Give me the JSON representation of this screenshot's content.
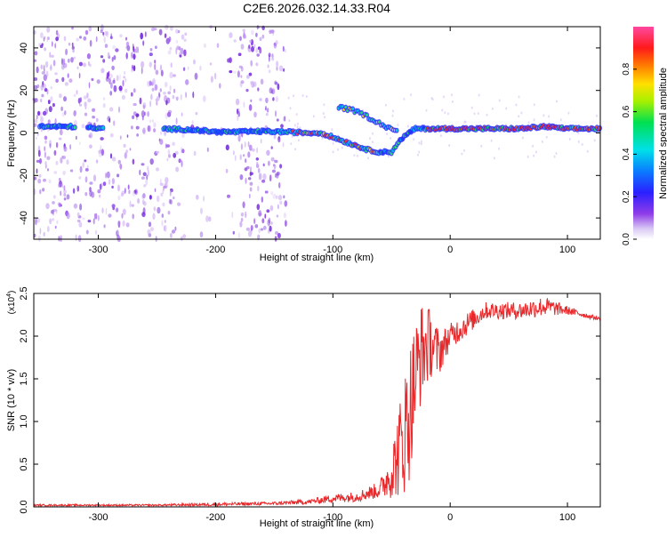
{
  "chart_data": [
    {
      "type": "heatmap",
      "title": "C2E6.2026.032.14.33.R04",
      "xlabel": "Height of straight line (km)",
      "ylabel": "Frequency (Hz)",
      "xlim": [
        -355,
        128
      ],
      "ylim": [
        -50,
        50
      ],
      "xticks": [
        -300,
        -200,
        -100,
        0,
        100
      ],
      "xtick_labels": [
        "-300",
        "-200",
        "-100",
        "0",
        "100"
      ],
      "yticks": [
        -40,
        -20,
        0,
        20,
        40
      ],
      "ytick_labels": [
        "-40",
        "-20",
        "0",
        "20",
        "40"
      ],
      "colorbar": {
        "label": "Normalized spectral amplitude",
        "range": [
          0,
          1
        ],
        "ticks": [
          0,
          0.2,
          0.4,
          0.6,
          0.8
        ],
        "tick_labels": [
          "0.0",
          "0.2",
          "0.4",
          "0.6",
          "0.8"
        ]
      },
      "ridge": {
        "x": [
          -350,
          -320,
          -300,
          -260,
          -245,
          -220,
          -200,
          -180,
          -160,
          -140,
          -120,
          -110,
          -100,
          -90,
          -80,
          -70,
          -60,
          -50,
          -45,
          -40,
          -30,
          -20,
          -10,
          0,
          20,
          40,
          60,
          80,
          100,
          128
        ],
        "freq": [
          3,
          3,
          2,
          2,
          2,
          1.5,
          0.5,
          0.5,
          0.8,
          0.5,
          0,
          0,
          -2,
          -4,
          -6,
          -8,
          -9,
          -9,
          -5,
          -2,
          2,
          2,
          2,
          2,
          2,
          2,
          2,
          3,
          2,
          2
        ]
      },
      "side_branch": {
        "x": [
          -95,
          -85,
          -75,
          -65,
          -55,
          -45
        ],
        "freq": [
          12,
          11,
          9,
          6,
          3,
          1
        ]
      },
      "noise_region_x": [
        -355,
        -140
      ]
    },
    {
      "type": "line",
      "title": "",
      "xlabel": "Height of straight line (km)",
      "ylabel": "SNR (10 * v/v)",
      "multiplier_label": "(x10",
      "multiplier_exponent": "4",
      "multiplier_close": ")",
      "xlim": [
        -355,
        128
      ],
      "ylim": [
        0,
        2.5
      ],
      "xticks": [
        -300,
        -200,
        -100,
        0,
        100
      ],
      "xtick_labels": [
        "-300",
        "-200",
        "-100",
        "0",
        "100"
      ],
      "yticks": [
        0,
        0.5,
        1,
        1.5,
        2,
        2.5
      ],
      "ytick_labels": [
        "0.0",
        "0.5",
        "1.0",
        "1.5",
        "2.0",
        "2.5"
      ],
      "series": [
        {
          "name": "SNR",
          "color": "#e8282a",
          "envelope_x": [
            -355,
            -250,
            -200,
            -150,
            -120,
            -100,
            -80,
            -60,
            -50,
            -45,
            -40,
            -35,
            -30,
            -25,
            -20,
            -15,
            -10,
            -5,
            0,
            10,
            20,
            30,
            40,
            60,
            80,
            100,
            128
          ],
          "envelope_y": [
            0.02,
            0.02,
            0.03,
            0.04,
            0.06,
            0.1,
            0.12,
            0.2,
            0.4,
            0.6,
            0.8,
            1.1,
            1.5,
            1.8,
            1.9,
            1.9,
            1.8,
            1.9,
            2.0,
            2.1,
            2.2,
            2.3,
            2.3,
            2.3,
            2.35,
            2.3,
            2.2
          ],
          "jitter": [
            0.01,
            0.01,
            0.02,
            0.02,
            0.03,
            0.05,
            0.06,
            0.1,
            0.3,
            0.5,
            0.7,
            0.8,
            0.7,
            0.6,
            0.5,
            0.35,
            0.3,
            0.2,
            0.15,
            0.15,
            0.12,
            0.1,
            0.1,
            0.1,
            0.12,
            0.05,
            0.02
          ]
        }
      ]
    }
  ]
}
